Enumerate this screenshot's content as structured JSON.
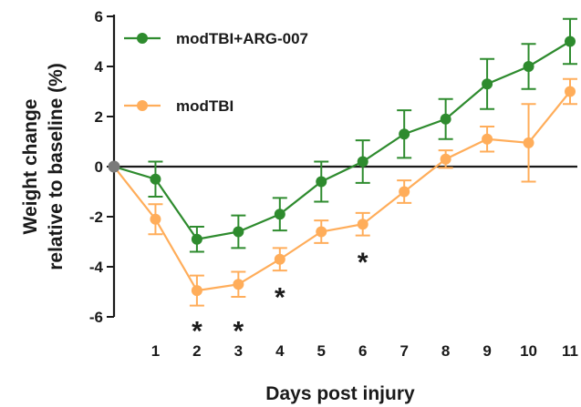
{
  "chart_data": {
    "type": "line",
    "xlabel": "Days post injury",
    "ylabel": "Weight change relative to baseline (%)",
    "ylabel_lines": [
      "Weight change",
      "relative to baseline (%)"
    ],
    "xlim": [
      0,
      11
    ],
    "ylim": [
      -6,
      6
    ],
    "xticks": [
      1,
      2,
      3,
      4,
      5,
      6,
      7,
      8,
      9,
      10,
      11
    ],
    "xtick_labels": [
      "1",
      "2",
      "3",
      "4",
      "5",
      "6",
      "7",
      "8",
      "9",
      "10",
      "11"
    ],
    "yticks": [
      -6,
      -4,
      -2,
      0,
      2,
      4,
      6
    ],
    "ytick_labels": [
      "-6",
      "-4",
      "-2",
      "0",
      "2",
      "4",
      "6"
    ],
    "grid": false,
    "legend_position": "top-left",
    "series": [
      {
        "name": "modTBI+ARG-007",
        "color": "#2e8b2e",
        "x": [
          0,
          1,
          2,
          3,
          4,
          5,
          6,
          7,
          8,
          9,
          10,
          11
        ],
        "y": [
          0,
          -0.5,
          -2.9,
          -2.6,
          -1.9,
          -0.6,
          0.2,
          1.3,
          1.9,
          3.3,
          4.0,
          5.0
        ],
        "err": [
          0,
          0.7,
          0.5,
          0.65,
          0.65,
          0.8,
          0.85,
          0.95,
          0.8,
          1.0,
          0.9,
          0.9
        ]
      },
      {
        "name": "modTBI",
        "color": "#ffad5a",
        "x": [
          0,
          1,
          2,
          3,
          4,
          5,
          6,
          7,
          8,
          9,
          10,
          11
        ],
        "y": [
          0,
          -2.1,
          -4.95,
          -4.7,
          -3.7,
          -2.6,
          -2.3,
          -1.0,
          0.3,
          1.1,
          0.95,
          3.0
        ],
        "err": [
          0,
          0.6,
          0.6,
          0.5,
          0.45,
          0.45,
          0.45,
          0.45,
          0.35,
          0.5,
          1.55,
          0.5
        ]
      }
    ],
    "annotations": [
      {
        "text": "*",
        "x": 2,
        "y": -6.2
      },
      {
        "text": "*",
        "x": 3,
        "y": -6.2
      },
      {
        "text": "*",
        "x": 4,
        "y": -4.85
      },
      {
        "text": "*",
        "x": 6,
        "y": -3.45
      }
    ]
  }
}
